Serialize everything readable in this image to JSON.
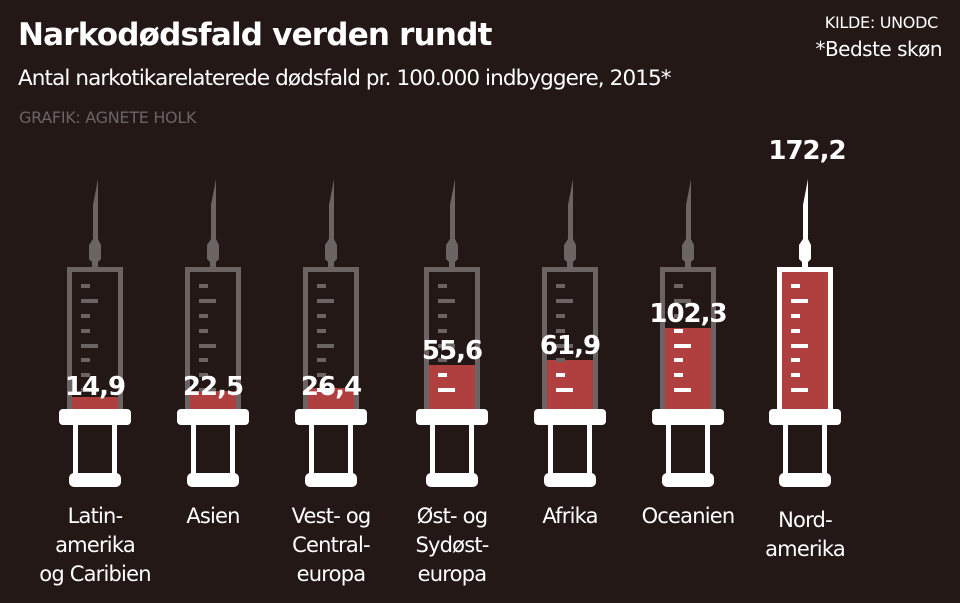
{
  "header": {
    "title": "Narkodødsfald verden rundt",
    "subtitle": "Antal narkotikarelaterede dødsfald pr. 100.000 indbyggere, 2015*",
    "credit": "GRAFIK: AGNETE HOLK",
    "source": "KILDE: UNODC",
    "note": "*Bedste skøn"
  },
  "colors": {
    "background": "#231815",
    "syringe_gray": "#6b6462",
    "syringe_highlight": "#ffffff",
    "fill_red": "#b03f40",
    "text": "#ffffff"
  },
  "chart_data": {
    "type": "bar",
    "title": "Narkodødsfald verden rundt",
    "subtitle": "Antal narkotikarelaterede dødsfald pr. 100.000 indbyggere, 2015*",
    "xlabel": "",
    "ylabel": "",
    "ylim": [
      0,
      172.2
    ],
    "grid": false,
    "categories": [
      [
        "Latin-",
        "amerika",
        "og Caribien"
      ],
      [
        "Asien"
      ],
      [
        "Vest- og",
        "Central-",
        "europa"
      ],
      [
        "Øst- og",
        "Sydøst-",
        "europa"
      ],
      [
        "Afrika"
      ],
      [
        "Oceanien"
      ],
      [
        "Nord-",
        "amerika"
      ]
    ],
    "values": [
      14.9,
      22.5,
      26.4,
      55.6,
      61.9,
      102.3,
      172.2
    ],
    "value_labels": [
      "14,9",
      "22,5",
      "26,4",
      "55,6",
      "61,9",
      "102,3",
      "172,2"
    ],
    "highlight_index": 6
  }
}
